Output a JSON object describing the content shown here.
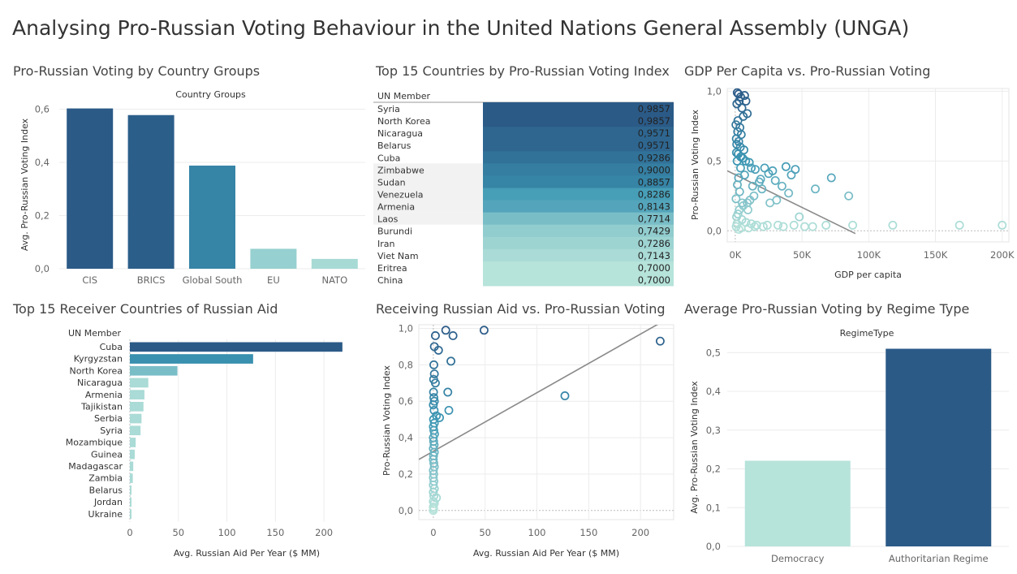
{
  "title": "Analysing Pro-Russian Voting Behaviour in the United Nations General Assembly (UNGA)",
  "colors": {
    "dark": "#2b5a87",
    "mid": "#3b96b3",
    "light": "#b6e3da"
  },
  "panels": {
    "groups": "Pro-Russian Voting by Country Groups",
    "top15": "Top 15 Countries by Pro-Russian Voting Index",
    "gdp": "GDP Per Capita vs. Pro-Russian Voting",
    "aid": "Top 15 Receiver Countries of Russian Aid",
    "aidscatter": "Receiving Russian Aid vs. Pro-Russian Voting",
    "regime": "Average Pro-Russian Voting by Regime Type"
  },
  "chart_data": [
    {
      "id": "groups",
      "type": "bar",
      "header": "Country Groups",
      "ylabel": "Avg. Pro-Russian Voting Index",
      "categories": [
        "CIS",
        "BRICS",
        "Global South",
        "EU",
        "NATO"
      ],
      "values": [
        0.603,
        0.578,
        0.388,
        0.075,
        0.037
      ],
      "ylim": [
        0,
        0.62
      ],
      "yticks": [
        "0,0",
        "0,2",
        "0,4",
        "0,6"
      ]
    },
    {
      "id": "top15",
      "type": "table",
      "header": "UN Member",
      "rows": [
        {
          "name": "Syria",
          "value": "0,9857"
        },
        {
          "name": "North Korea",
          "value": "0,9857"
        },
        {
          "name": "Nicaragua",
          "value": "0,9571"
        },
        {
          "name": "Belarus",
          "value": "0,9571"
        },
        {
          "name": "Cuba",
          "value": "0,9286"
        },
        {
          "name": "Zimbabwe",
          "value": "0,9000"
        },
        {
          "name": "Sudan",
          "value": "0,8857"
        },
        {
          "name": "Venezuela",
          "value": "0,8286"
        },
        {
          "name": "Armenia",
          "value": "0,8143"
        },
        {
          "name": "Laos",
          "value": "0,7714"
        },
        {
          "name": "Burundi",
          "value": "0,7429"
        },
        {
          "name": "Iran",
          "value": "0,7286"
        },
        {
          "name": "Viet Nam",
          "value": "0,7143"
        },
        {
          "name": "Eritrea",
          "value": "0,7000"
        },
        {
          "name": "China",
          "value": "0,7000"
        }
      ]
    },
    {
      "id": "gdp",
      "type": "scatter",
      "xlabel": "GDP per capita",
      "ylabel": "Pro-Russian Voting Index",
      "xlim": [
        -6000,
        205000
      ],
      "ylim": [
        -0.08,
        1.02
      ],
      "xticks": [
        {
          "v": 0,
          "t": "0K"
        },
        {
          "v": 50000,
          "t": "50K"
        },
        {
          "v": 100000,
          "t": "100K"
        },
        {
          "v": 150000,
          "t": "150K"
        },
        {
          "v": 200000,
          "t": "200K"
        }
      ],
      "yticks": [
        {
          "v": 0,
          "t": "0,0"
        },
        {
          "v": 0.5,
          "t": "0,5"
        },
        {
          "v": 1,
          "t": "1,0"
        }
      ],
      "trend": [
        [
          -6000,
          0.43
        ],
        [
          90000,
          -0.02
        ]
      ],
      "points": [
        [
          1500,
          0.99
        ],
        [
          2500,
          0.98
        ],
        [
          7000,
          0.97
        ],
        [
          4000,
          0.96
        ],
        [
          3000,
          0.93
        ],
        [
          8000,
          0.93
        ],
        [
          1200,
          0.91
        ],
        [
          5000,
          0.88
        ],
        [
          9000,
          0.84
        ],
        [
          6000,
          0.82
        ],
        [
          2000,
          0.79
        ],
        [
          500,
          0.76
        ],
        [
          3500,
          0.74
        ],
        [
          1800,
          0.71
        ],
        [
          4500,
          0.69
        ],
        [
          800,
          0.66
        ],
        [
          2600,
          0.64
        ],
        [
          1100,
          0.62
        ],
        [
          3800,
          0.6
        ],
        [
          6500,
          0.58
        ],
        [
          900,
          0.56
        ],
        [
          2200,
          0.55
        ],
        [
          4100,
          0.53
        ],
        [
          5600,
          0.52
        ],
        [
          1400,
          0.5
        ],
        [
          7800,
          0.5
        ],
        [
          10500,
          0.49
        ],
        [
          12000,
          0.45
        ],
        [
          15000,
          0.44
        ],
        [
          25000,
          0.41
        ],
        [
          30000,
          0.36
        ],
        [
          35000,
          0.32
        ],
        [
          40000,
          0.27
        ],
        [
          42000,
          0.4
        ],
        [
          45000,
          0.44
        ],
        [
          38000,
          0.46
        ],
        [
          22000,
          0.45
        ],
        [
          28000,
          0.43
        ],
        [
          60000,
          0.3
        ],
        [
          72000,
          0.38
        ],
        [
          85000,
          0.25
        ],
        [
          18000,
          0.35
        ],
        [
          20000,
          0.3
        ],
        [
          14000,
          0.25
        ],
        [
          11000,
          0.22
        ],
        [
          9000,
          0.2
        ],
        [
          6000,
          0.18
        ],
        [
          3000,
          0.15
        ],
        [
          2000,
          0.12
        ],
        [
          1000,
          0.1
        ],
        [
          5000,
          0.08
        ],
        [
          8000,
          0.06
        ],
        [
          12000,
          0.05
        ],
        [
          16000,
          0.04
        ],
        [
          24000,
          0.04
        ],
        [
          32000,
          0.04
        ],
        [
          44000,
          0.04
        ],
        [
          52000,
          0.03
        ],
        [
          68000,
          0.04
        ],
        [
          88000,
          0.04
        ],
        [
          118000,
          0.04
        ],
        [
          168000,
          0.04
        ],
        [
          200000,
          0.04
        ],
        [
          48000,
          0.1
        ],
        [
          26000,
          0.2
        ],
        [
          31000,
          0.22
        ],
        [
          19000,
          0.37
        ],
        [
          13000,
          0.32
        ],
        [
          7000,
          0.4
        ],
        [
          4000,
          0.45
        ],
        [
          2500,
          0.38
        ],
        [
          1600,
          0.33
        ],
        [
          3300,
          0.28
        ],
        [
          600,
          0.23
        ],
        [
          5200,
          0.2
        ],
        [
          9500,
          0.15
        ],
        [
          1300,
          0.05
        ],
        [
          700,
          0.03
        ],
        [
          2700,
          0.01
        ],
        [
          4300,
          0.02
        ],
        [
          10000,
          0.02
        ],
        [
          14500,
          0.03
        ],
        [
          21000,
          0.03
        ],
        [
          36000,
          0.03
        ],
        [
          58000,
          0.03
        ]
      ]
    },
    {
      "id": "aid",
      "type": "bar",
      "orientation": "horizontal",
      "header": "UN Member",
      "xlabel": "Avg. Russian Aid Per Year ($ MM)",
      "xlim": [
        0,
        230
      ],
      "xticks": [
        0,
        50,
        100,
        150,
        200
      ],
      "categories": [
        "Cuba",
        "Kyrgyzstan",
        "North Korea",
        "Nicaragua",
        "Armenia",
        "Tajikistan",
        "Serbia",
        "Syria",
        "Mozambique",
        "Guinea",
        "Madagascar",
        "Zambia",
        "Belarus",
        "Jordan",
        "Ukraine"
      ],
      "values": [
        219,
        127,
        49,
        19,
        15,
        14,
        12,
        11,
        6,
        5,
        3.5,
        3,
        1.5,
        1.2,
        1
      ]
    },
    {
      "id": "aidscatter",
      "type": "scatter",
      "xlabel": "Avg. Russian Aid Per Year ($ MM)",
      "ylabel": "Pro-Russian Voting Index",
      "xlim": [
        -14,
        232
      ],
      "ylim": [
        -0.05,
        1.02
      ],
      "xticks": [
        {
          "v": 0,
          "t": "0"
        },
        {
          "v": 50,
          "t": "50"
        },
        {
          "v": 100,
          "t": "100"
        },
        {
          "v": 150,
          "t": "150"
        },
        {
          "v": 200,
          "t": "200"
        }
      ],
      "yticks": [
        {
          "v": 0,
          "t": "0,0"
        },
        {
          "v": 0.2,
          "t": "0,2"
        },
        {
          "v": 0.4,
          "t": "0,4"
        },
        {
          "v": 0.6,
          "t": "0,6"
        },
        {
          "v": 0.8,
          "t": "0,8"
        },
        {
          "v": 1,
          "t": "1,0"
        }
      ],
      "trend": [
        [
          -14,
          0.28
        ],
        [
          219,
          1.03
        ]
      ],
      "points": [
        [
          12,
          0.99
        ],
        [
          49,
          0.99
        ],
        [
          2,
          0.96
        ],
        [
          19,
          0.96
        ],
        [
          1,
          0.9
        ],
        [
          5,
          0.88
        ],
        [
          17,
          0.82
        ],
        [
          0.5,
          0.8
        ],
        [
          1,
          0.75
        ],
        [
          0.3,
          0.72
        ],
        [
          2,
          0.7
        ],
        [
          14,
          0.65
        ],
        [
          0.5,
          0.62
        ],
        [
          1,
          0.6
        ],
        [
          0,
          0.58
        ],
        [
          15,
          0.55
        ],
        [
          3,
          0.52
        ],
        [
          6,
          0.51
        ],
        [
          0.2,
          0.5
        ],
        [
          1,
          0.48
        ],
        [
          0,
          0.46
        ],
        [
          0.5,
          0.44
        ],
        [
          1.2,
          0.42
        ],
        [
          0,
          0.4
        ],
        [
          0.3,
          0.38
        ],
        [
          0.8,
          0.36
        ],
        [
          0,
          0.34
        ],
        [
          1,
          0.32
        ],
        [
          0.2,
          0.3
        ],
        [
          0,
          0.28
        ],
        [
          0.5,
          0.26
        ],
        [
          1,
          0.24
        ],
        [
          0,
          0.22
        ],
        [
          0.4,
          0.2
        ],
        [
          0,
          0.18
        ],
        [
          0.6,
          0.16
        ],
        [
          0,
          0.14
        ],
        [
          1,
          0.12
        ],
        [
          0,
          0.1
        ],
        [
          0.5,
          0.08
        ],
        [
          3,
          0.07
        ],
        [
          0,
          0.05
        ],
        [
          1,
          0.04
        ],
        [
          0,
          0.02
        ],
        [
          0.3,
          0.01
        ],
        [
          0,
          0
        ],
        [
          127,
          0.63
        ],
        [
          219,
          0.93
        ],
        [
          0.8,
          0.55
        ],
        [
          0.2,
          0.65
        ]
      ]
    },
    {
      "id": "regime",
      "type": "bar",
      "header": "RegimeType",
      "ylabel": "Avg. Pro-Russian Voting Index",
      "categories": [
        "Democracy",
        "Authoritarian Regime"
      ],
      "values": [
        0.221,
        0.51
      ],
      "ylim": [
        0,
        0.53
      ],
      "yticks": [
        "0,0",
        "0,1",
        "0,2",
        "0,3",
        "0,4",
        "0,5"
      ]
    }
  ]
}
